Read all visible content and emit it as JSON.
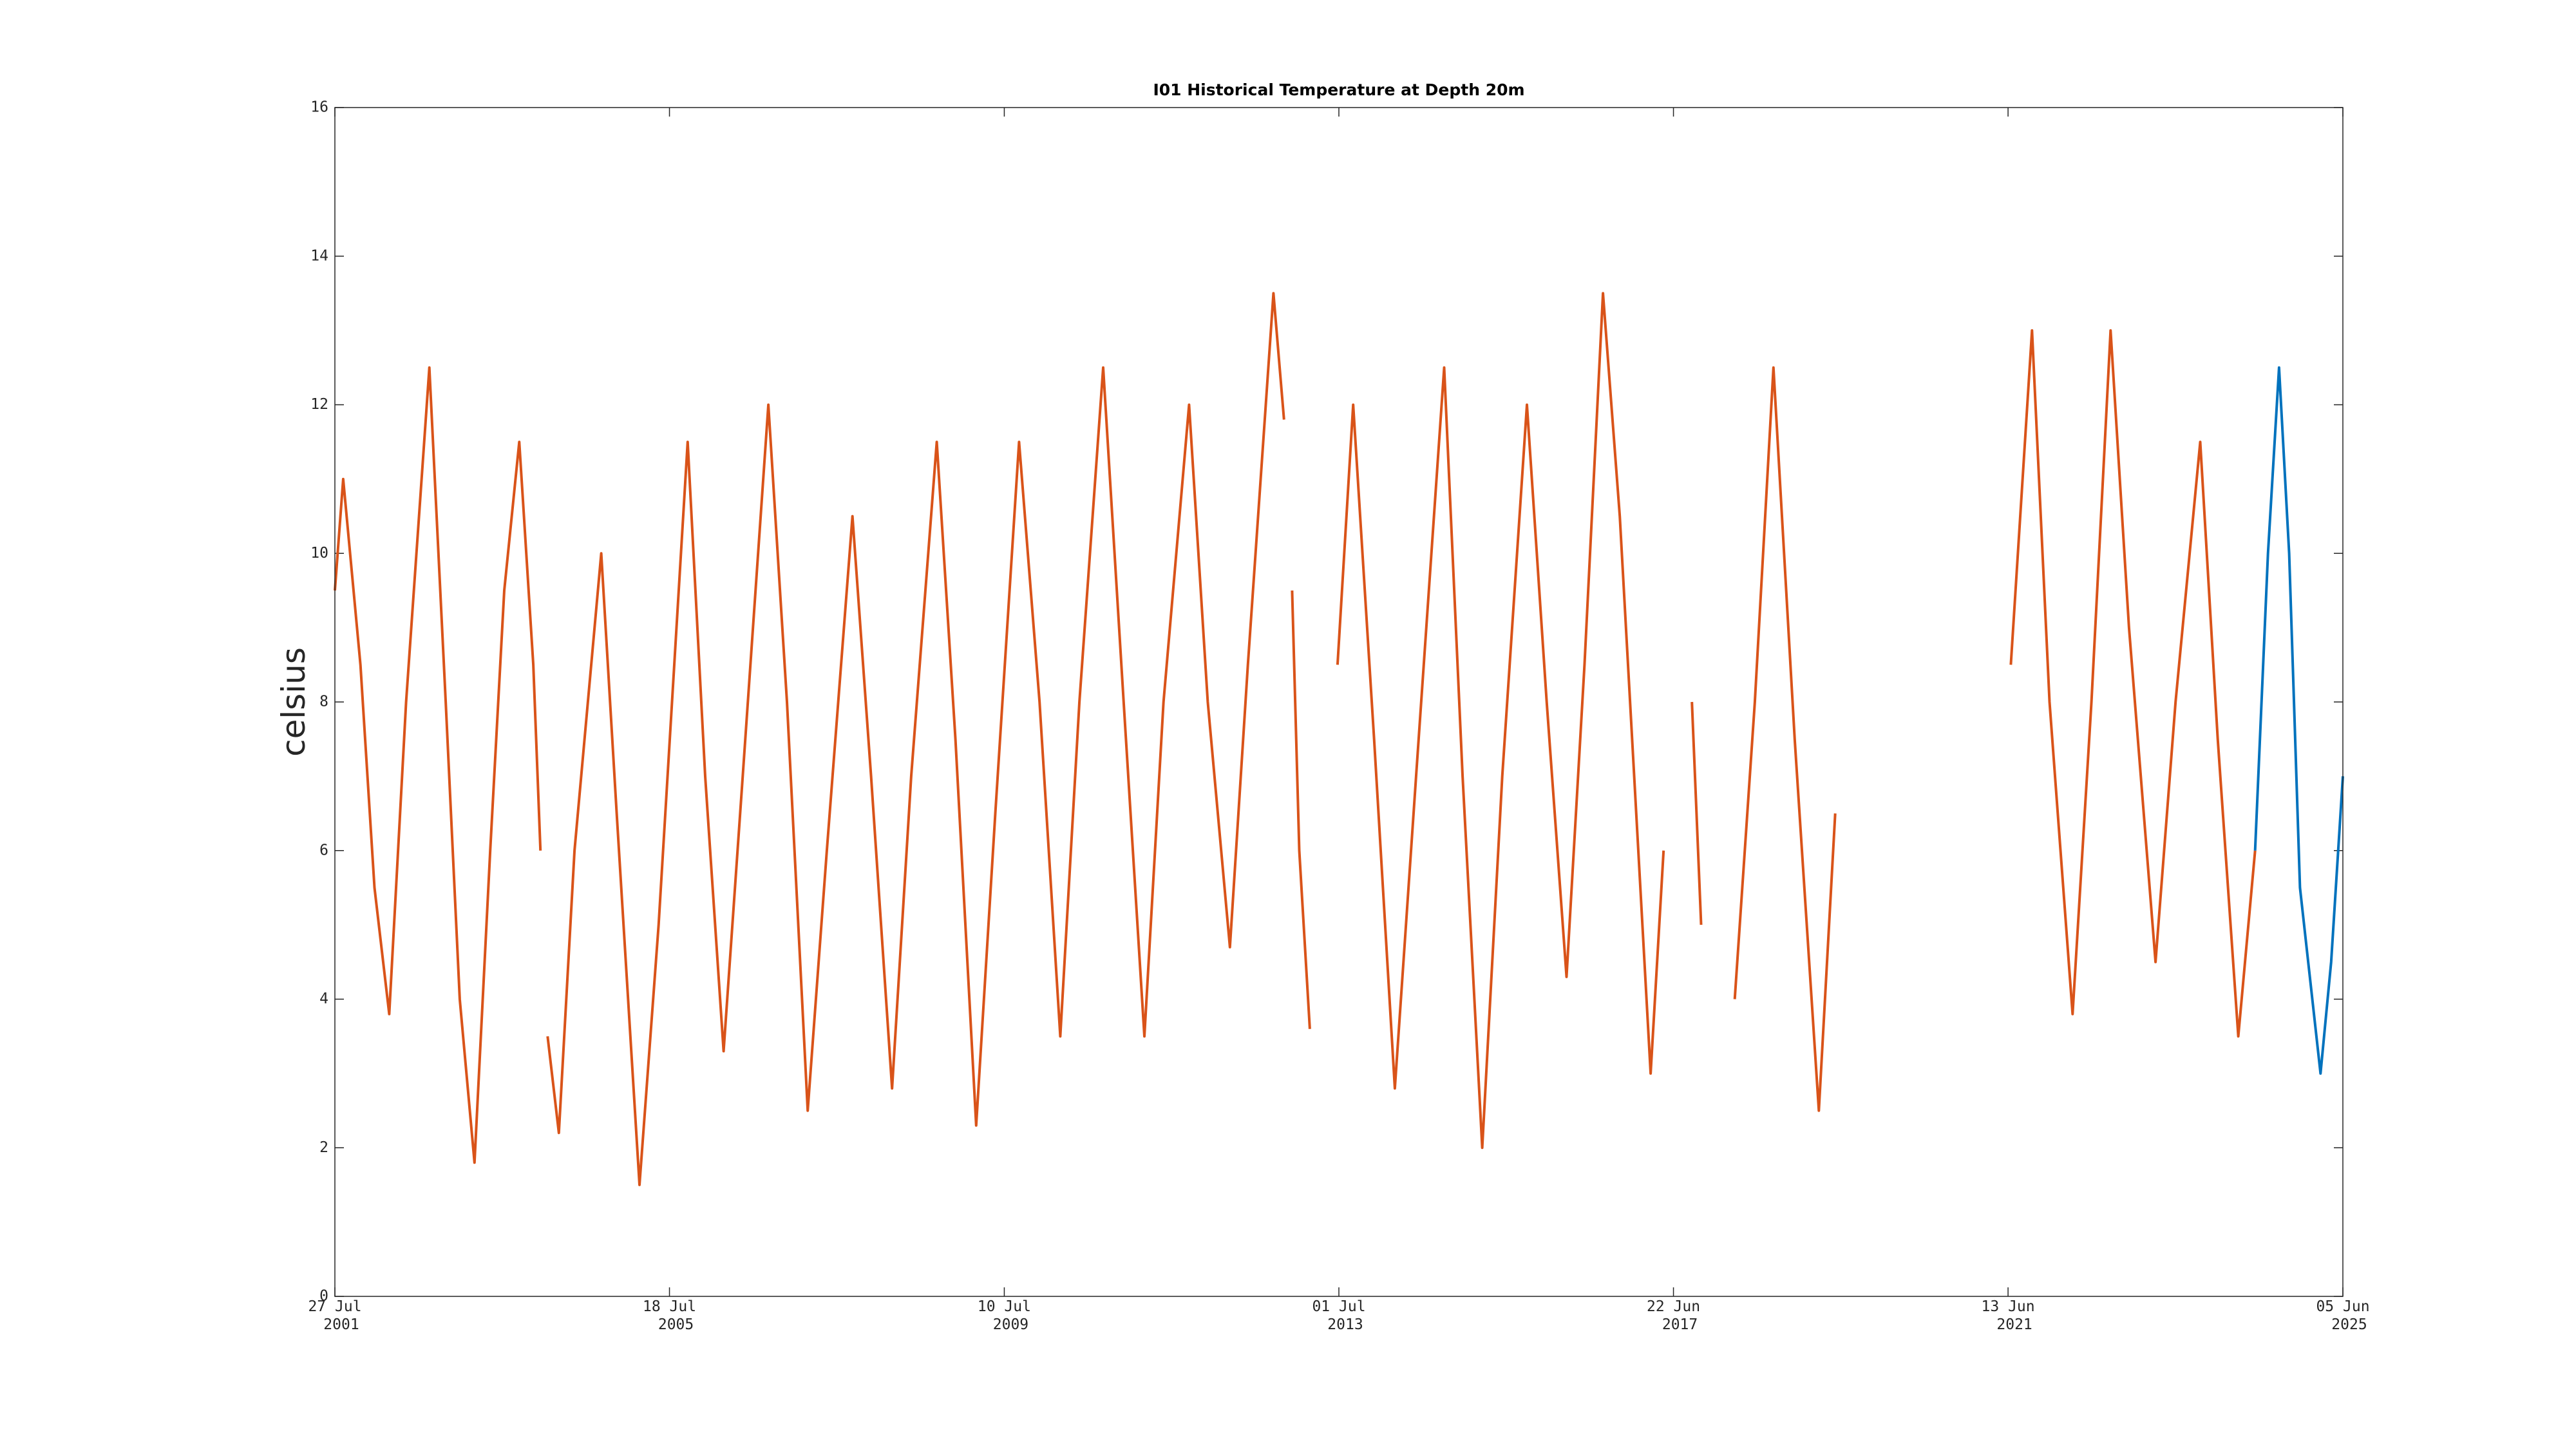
{
  "chart_data": {
    "type": "line",
    "title": "I01 Historical Temperature at Depth 20m",
    "ylabel": "celsius",
    "xlim": [
      "2001-07-27",
      "2025-06-05"
    ],
    "xticks": [
      {
        "value": "2001-07-27",
        "label": [
          "27 Jul",
          "2001"
        ]
      },
      {
        "value": "2005-07-18",
        "label": [
          "18 Jul",
          "2005"
        ]
      },
      {
        "value": "2009-07-10",
        "label": [
          "10 Jul",
          "2009"
        ]
      },
      {
        "value": "2013-07-01",
        "label": [
          "01 Jul",
          "2013"
        ]
      },
      {
        "value": "2017-06-22",
        "label": [
          "22 Jun",
          "2017"
        ]
      },
      {
        "value": "2021-06-13",
        "label": [
          "13 Jun",
          "2021"
        ]
      },
      {
        "value": "2025-06-05",
        "label": [
          "05 Jun",
          "2025"
        ]
      }
    ],
    "ylim": [
      0,
      16
    ],
    "yticks": [
      0,
      2,
      4,
      6,
      8,
      10,
      12,
      14,
      16
    ],
    "series": [
      {
        "color": "#d95319",
        "x": [
          "2001-07-27",
          "2001-09-01",
          "2001-11-15",
          "2002-01-15",
          "2002-03-20",
          "2002-06-01",
          "2002-09-10",
          "2002-11-20",
          "2003-01-20",
          "2003-03-25",
          "2003-06-01",
          "2003-08-01",
          "2003-10-05",
          "2003-12-05",
          "2004-01-05",
          "2004-01-20",
          "2004-02-05",
          "2004-03-25",
          "2004-06-01",
          "2004-09-25",
          "2004-12-01",
          "2005-03-10",
          "2005-06-01",
          "2005-10-05",
          "2005-12-20",
          "2006-03-10",
          "2006-06-01",
          "2006-09-20",
          "2006-12-10",
          "2007-03-10",
          "2007-06-01",
          "2007-09-20",
          "2007-12-10",
          "2008-03-10",
          "2008-06-01",
          "2008-09-20",
          "2008-12-10",
          "2009-03-10",
          "2009-06-01",
          "2009-09-12",
          "2009-12-10",
          "2010-03-10",
          "2010-06-01",
          "2010-09-12",
          "2010-12-10",
          "2011-03-10",
          "2011-06-01",
          "2011-09-20",
          "2011-12-10",
          "2012-03-15",
          "2012-06-01",
          "2012-09-20",
          "2012-11-05",
          "2012-11-20",
          "2012-12-10",
          "2013-01-10",
          "2013-02-25",
          "2013-04-01",
          "2013-06-25",
          "2013-09-01",
          "2013-12-01",
          "2014-03-01",
          "2014-06-01",
          "2014-10-01",
          "2014-12-20",
          "2015-03-15",
          "2015-06-10",
          "2015-09-25",
          "2015-12-20",
          "2016-03-15",
          "2016-06-01",
          "2016-08-20",
          "2016-11-01",
          "2017-03-15",
          "2017-05-10",
          "2017-07-01",
          "2017-09-10",
          "2017-10-20",
          "2017-11-20",
          "2018-03-15",
          "2018-06-10",
          "2018-08-30",
          "2018-11-30",
          "2019-03-15",
          "2019-05-25",
          "2020-01-01",
          "2021-06-25",
          "2021-09-25",
          "2021-12-10",
          "2022-03-20",
          "2022-06-10",
          "2022-09-01",
          "2022-11-20",
          "2023-03-15",
          "2023-06-10",
          "2023-09-25",
          "2023-12-10",
          "2024-03-08",
          "2024-05-20"
        ],
        "values": [
          9.5,
          11,
          8.5,
          5.5,
          3.8,
          8,
          12.5,
          8,
          4,
          1.8,
          6,
          9.5,
          11.5,
          8.5,
          6,
          null,
          3.5,
          2.2,
          6,
          10,
          6.5,
          1.5,
          5,
          11.5,
          7,
          3.3,
          7,
          12,
          8,
          2.5,
          6,
          10.5,
          7,
          2.8,
          7,
          11.5,
          7.5,
          2.3,
          6.5,
          11.5,
          8,
          3.5,
          8,
          12.5,
          8,
          3.5,
          8,
          12,
          8,
          4.7,
          8.5,
          13.5,
          11.8,
          null,
          9.5,
          6,
          3.6,
          null,
          8.5,
          12,
          7.5,
          2.8,
          7,
          12.5,
          7,
          2,
          7,
          12,
          8,
          4.3,
          8.5,
          13.5,
          10.5,
          3,
          6,
          null,
          8,
          5,
          null,
          4,
          8,
          12.5,
          7.5,
          2.5,
          6.5,
          null,
          8.5,
          13,
          8,
          3.8,
          8,
          13,
          9,
          4.5,
          8,
          11.5,
          7.5,
          3.5,
          6
        ]
      },
      {
        "color": "#0072bd",
        "x": [
          "2024-05-20",
          "2024-07-15",
          "2024-09-01",
          "2024-10-15",
          "2024-12-01",
          "2025-02-28",
          "2025-04-15",
          "2025-06-05"
        ],
        "values": [
          6,
          10,
          12.5,
          10,
          5.5,
          3,
          4.5,
          7
        ]
      }
    ]
  }
}
